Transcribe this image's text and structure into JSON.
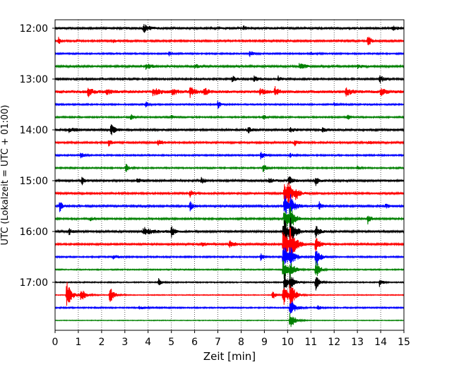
{
  "chart_data": {
    "type": "line",
    "subtype": "helicorder",
    "title": "",
    "xlabel": "Zeit  [min]",
    "ylabel": "UTC (Lokalzeit = UTC + 01:00)",
    "xlim": [
      0,
      15
    ],
    "x_ticks": [
      0,
      1,
      2,
      3,
      4,
      5,
      6,
      7,
      8,
      9,
      10,
      11,
      12,
      13,
      14,
      15
    ],
    "x_tick_labels": [
      "0",
      "1",
      "2",
      "3",
      "4",
      "5",
      "6",
      "7",
      "8",
      "9",
      "10",
      "11",
      "12",
      "13",
      "14",
      "15"
    ],
    "x_grid": true,
    "x_grid_style": "dotted",
    "trace_interval_min": 15,
    "trace_start_times": [
      "12:00",
      "12:15",
      "12:30",
      "12:45",
      "13:00",
      "13:15",
      "13:30",
      "13:45",
      "14:00",
      "14:15",
      "14:30",
      "14:45",
      "15:00",
      "15:15",
      "15:30",
      "15:45",
      "16:00",
      "16:15",
      "16:30",
      "16:45",
      "17:00",
      "17:15",
      "17:30",
      "17:45"
    ],
    "y_tick_labels": [
      "12:00",
      "13:00",
      "14:00",
      "15:00",
      "16:00",
      "17:00"
    ],
    "color_cycle": [
      "#000000",
      "#ff0000",
      "#0000ff",
      "#008000"
    ],
    "traces": [
      {
        "start": "12:00",
        "noise": 1.6,
        "events": [
          {
            "t": 3.8,
            "amp": 6,
            "dur": 0.6
          },
          {
            "t": 8.1,
            "amp": 3,
            "dur": 0.3
          },
          {
            "t": 14.5,
            "amp": 3,
            "dur": 0.5
          }
        ]
      },
      {
        "start": "12:15",
        "noise": 1.2,
        "events": [
          {
            "t": 0.15,
            "amp": 6,
            "dur": 0.2
          },
          {
            "t": 13.45,
            "amp": 10,
            "dur": 0.3
          },
          {
            "t": 2.5,
            "amp": 2,
            "dur": 0.6
          }
        ]
      },
      {
        "start": "12:30",
        "noise": 1.0,
        "events": [
          {
            "t": 4.9,
            "amp": 3,
            "dur": 0.3
          },
          {
            "t": 8.35,
            "amp": 5,
            "dur": 0.4
          },
          {
            "t": 11.0,
            "amp": 2,
            "dur": 0.4
          }
        ]
      },
      {
        "start": "12:45",
        "noise": 1.3,
        "events": [
          {
            "t": 3.9,
            "amp": 5,
            "dur": 0.6
          },
          {
            "t": 6.0,
            "amp": 3,
            "dur": 0.5
          },
          {
            "t": 10.5,
            "amp": 4,
            "dur": 0.8
          },
          {
            "t": 13.0,
            "amp": 3,
            "dur": 0.5
          }
        ]
      },
      {
        "start": "13:00",
        "noise": 1.2,
        "events": [
          {
            "t": 7.6,
            "amp": 5,
            "dur": 0.4
          },
          {
            "t": 8.55,
            "amp": 6,
            "dur": 0.3
          },
          {
            "t": 9.6,
            "amp": 5,
            "dur": 0.3
          },
          {
            "t": 13.95,
            "amp": 7,
            "dur": 0.4
          }
        ]
      },
      {
        "start": "13:15",
        "noise": 2.0,
        "events": [
          {
            "t": 1.4,
            "amp": 7,
            "dur": 0.5
          },
          {
            "t": 2.2,
            "amp": 5,
            "dur": 0.4
          },
          {
            "t": 4.2,
            "amp": 6,
            "dur": 0.7
          },
          {
            "t": 5.05,
            "amp": 5,
            "dur": 0.5
          },
          {
            "t": 5.8,
            "amp": 7,
            "dur": 0.5
          },
          {
            "t": 6.4,
            "amp": 6,
            "dur": 0.4
          },
          {
            "t": 8.8,
            "amp": 5,
            "dur": 0.5
          },
          {
            "t": 9.45,
            "amp": 7,
            "dur": 0.4
          },
          {
            "t": 12.5,
            "amp": 7,
            "dur": 0.5
          },
          {
            "t": 14.0,
            "amp": 6,
            "dur": 0.5
          }
        ]
      },
      {
        "start": "13:30",
        "noise": 1.0,
        "events": [
          {
            "t": 3.9,
            "amp": 4,
            "dur": 0.3
          },
          {
            "t": 7.0,
            "amp": 6,
            "dur": 0.3
          },
          {
            "t": 12.0,
            "amp": 3,
            "dur": 0.4
          }
        ]
      },
      {
        "start": "13:45",
        "noise": 1.0,
        "events": [
          {
            "t": 3.25,
            "amp": 5,
            "dur": 0.3
          },
          {
            "t": 5.0,
            "amp": 3,
            "dur": 0.3
          },
          {
            "t": 8.95,
            "amp": 4,
            "dur": 0.3
          },
          {
            "t": 12.55,
            "amp": 5,
            "dur": 0.3
          }
        ]
      },
      {
        "start": "14:00",
        "noise": 1.5,
        "events": [
          {
            "t": 0.6,
            "amp": 3,
            "dur": 0.8
          },
          {
            "t": 2.4,
            "amp": 9,
            "dur": 0.4
          },
          {
            "t": 8.3,
            "amp": 5,
            "dur": 0.3
          },
          {
            "t": 10.1,
            "amp": 3,
            "dur": 0.6
          },
          {
            "t": 11.5,
            "amp": 3,
            "dur": 0.5
          }
        ]
      },
      {
        "start": "14:15",
        "noise": 1.2,
        "events": [
          {
            "t": 2.3,
            "amp": 6,
            "dur": 0.3
          },
          {
            "t": 4.4,
            "amp": 4,
            "dur": 0.6
          },
          {
            "t": 10.3,
            "amp": 5,
            "dur": 0.4
          },
          {
            "t": 13.5,
            "amp": 3,
            "dur": 0.4
          }
        ]
      },
      {
        "start": "14:30",
        "noise": 1.0,
        "events": [
          {
            "t": 1.1,
            "amp": 5,
            "dur": 0.3
          },
          {
            "t": 8.85,
            "amp": 6,
            "dur": 0.4
          },
          {
            "t": 10.1,
            "amp": 3,
            "dur": 0.4
          }
        ]
      },
      {
        "start": "14:45",
        "noise": 1.0,
        "events": [
          {
            "t": 3.05,
            "amp": 6,
            "dur": 0.3
          },
          {
            "t": 8.95,
            "amp": 7,
            "dur": 0.3
          },
          {
            "t": 13.0,
            "amp": 3,
            "dur": 0.3
          }
        ]
      },
      {
        "start": "15:00",
        "noise": 1.5,
        "events": [
          {
            "t": 1.15,
            "amp": 6,
            "dur": 0.3
          },
          {
            "t": 3.5,
            "amp": 3,
            "dur": 0.6
          },
          {
            "t": 6.3,
            "amp": 5,
            "dur": 0.3
          },
          {
            "t": 9.2,
            "amp": 4,
            "dur": 0.4
          },
          {
            "t": 10.05,
            "amp": 7,
            "dur": 0.4
          },
          {
            "t": 11.2,
            "amp": 8,
            "dur": 0.3
          }
        ]
      },
      {
        "start": "15:15",
        "noise": 1.2,
        "events": [
          {
            "t": 5.8,
            "amp": 6,
            "dur": 0.3
          },
          {
            "t": 9.85,
            "amp": 18,
            "dur": 0.5
          },
          {
            "t": 10.0,
            "amp": 14,
            "dur": 0.5
          },
          {
            "t": 10.35,
            "amp": 8,
            "dur": 0.4
          }
        ]
      },
      {
        "start": "15:30",
        "noise": 1.3,
        "events": [
          {
            "t": 0.2,
            "amp": 8,
            "dur": 0.3
          },
          {
            "t": 5.8,
            "amp": 7,
            "dur": 0.3
          },
          {
            "t": 9.85,
            "amp": 18,
            "dur": 0.5
          },
          {
            "t": 10.1,
            "amp": 14,
            "dur": 0.5
          },
          {
            "t": 11.35,
            "amp": 7,
            "dur": 0.3
          },
          {
            "t": 14.2,
            "amp": 3,
            "dur": 0.5
          }
        ]
      },
      {
        "start": "15:45",
        "noise": 1.2,
        "events": [
          {
            "t": 1.5,
            "amp": 3,
            "dur": 0.5
          },
          {
            "t": 9.85,
            "amp": 20,
            "dur": 0.5
          },
          {
            "t": 10.1,
            "amp": 14,
            "dur": 0.5
          },
          {
            "t": 13.45,
            "amp": 8,
            "dur": 0.3
          }
        ]
      },
      {
        "start": "16:00",
        "noise": 1.5,
        "events": [
          {
            "t": 0.6,
            "amp": 5,
            "dur": 0.3
          },
          {
            "t": 3.8,
            "amp": 6,
            "dur": 1.0
          },
          {
            "t": 5.0,
            "amp": 9,
            "dur": 0.3
          },
          {
            "t": 9.8,
            "amp": 22,
            "dur": 0.6
          },
          {
            "t": 10.1,
            "amp": 16,
            "dur": 0.5
          },
          {
            "t": 11.2,
            "amp": 9,
            "dur": 0.4
          }
        ]
      },
      {
        "start": "16:15",
        "noise": 1.2,
        "events": [
          {
            "t": 6.3,
            "amp": 3,
            "dur": 0.6
          },
          {
            "t": 7.5,
            "amp": 6,
            "dur": 0.6
          },
          {
            "t": 9.8,
            "amp": 24,
            "dur": 0.7
          },
          {
            "t": 10.1,
            "amp": 18,
            "dur": 0.6
          },
          {
            "t": 11.2,
            "amp": 14,
            "dur": 0.4
          }
        ]
      },
      {
        "start": "16:30",
        "noise": 1.0,
        "events": [
          {
            "t": 2.5,
            "amp": 3,
            "dur": 0.6
          },
          {
            "t": 8.85,
            "amp": 6,
            "dur": 0.3
          },
          {
            "t": 9.8,
            "amp": 20,
            "dur": 0.6
          },
          {
            "t": 10.1,
            "amp": 14,
            "dur": 0.5
          },
          {
            "t": 11.2,
            "amp": 20,
            "dur": 0.4
          }
        ]
      },
      {
        "start": "16:45",
        "noise": 0.8,
        "events": [
          {
            "t": 9.8,
            "amp": 16,
            "dur": 0.5
          },
          {
            "t": 10.1,
            "amp": 12,
            "dur": 0.5
          },
          {
            "t": 11.2,
            "amp": 16,
            "dur": 0.4
          }
        ]
      },
      {
        "start": "17:00",
        "noise": 0.8,
        "events": [
          {
            "t": 4.45,
            "amp": 6,
            "dur": 0.3
          },
          {
            "t": 9.85,
            "amp": 14,
            "dur": 0.5
          },
          {
            "t": 10.1,
            "amp": 10,
            "dur": 0.5
          },
          {
            "t": 11.2,
            "amp": 12,
            "dur": 0.4
          },
          {
            "t": 13.95,
            "amp": 7,
            "dur": 0.3
          }
        ]
      },
      {
        "start": "17:15",
        "noise": 0.6,
        "events": [
          {
            "t": 0.5,
            "amp": 22,
            "dur": 0.5
          },
          {
            "t": 1.1,
            "amp": 10,
            "dur": 0.5
          },
          {
            "t": 2.35,
            "amp": 13,
            "dur": 0.5
          },
          {
            "t": 9.35,
            "amp": 8,
            "dur": 0.3
          },
          {
            "t": 9.8,
            "amp": 18,
            "dur": 0.5
          },
          {
            "t": 10.1,
            "amp": 20,
            "dur": 0.5
          }
        ]
      },
      {
        "start": "17:30",
        "noise": 0.9,
        "events": [
          {
            "t": 3.6,
            "amp": 2,
            "dur": 0.8
          },
          {
            "t": 10.1,
            "amp": 16,
            "dur": 0.5
          },
          {
            "t": 11.3,
            "amp": 4,
            "dur": 0.3
          }
        ]
      },
      {
        "start": "17:45",
        "noise": 0.5,
        "events": [
          {
            "t": 10.1,
            "amp": 14,
            "dur": 0.5
          }
        ]
      }
    ]
  }
}
